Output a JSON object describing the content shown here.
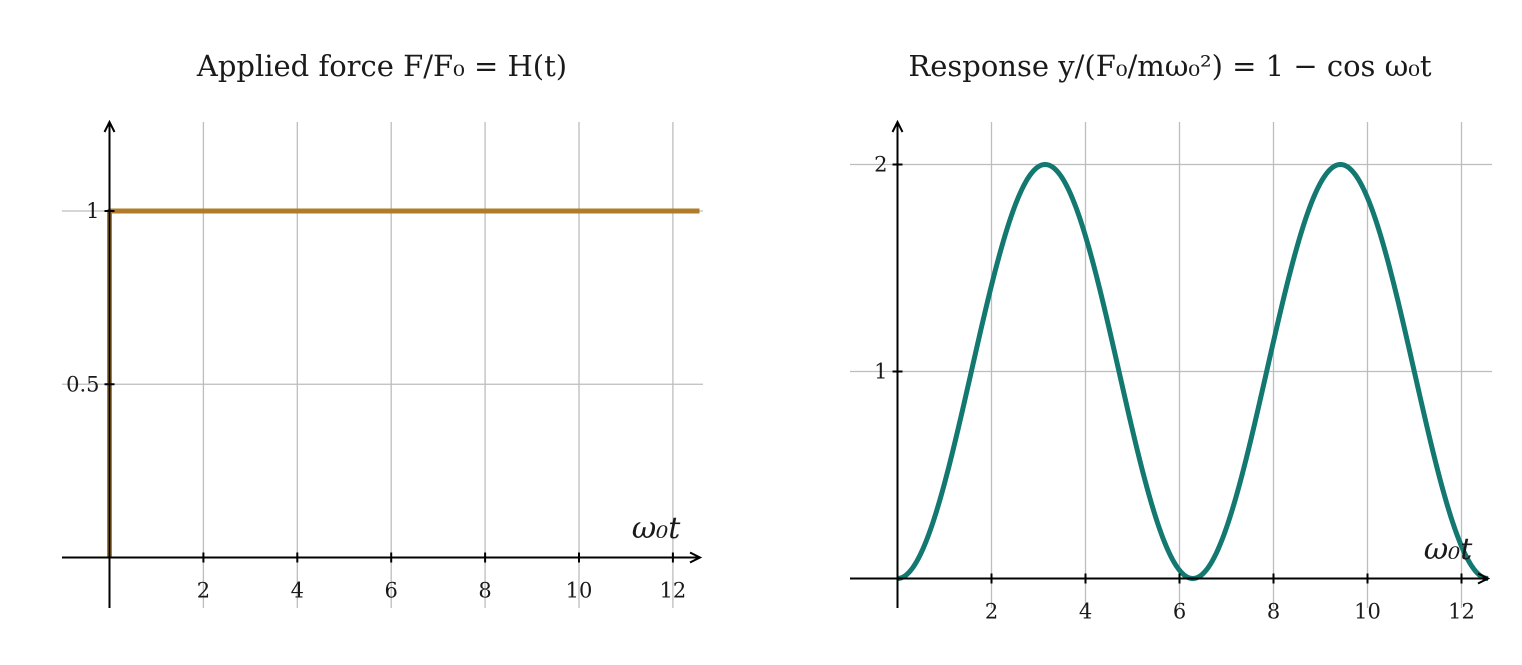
{
  "chart_data": [
    {
      "type": "line",
      "title": "Applied force F/F₀ = H(t)",
      "xlabel": "ω₀t",
      "ylabel": "",
      "xlim": [
        -1,
        12.6
      ],
      "ylim": [
        -0.15,
        1.25
      ],
      "xticks": [
        2,
        4,
        6,
        8,
        10,
        12
      ],
      "xtick_labels": [
        "2",
        "4",
        "6",
        "8",
        "10",
        "12"
      ],
      "yticks": [
        0.5,
        1
      ],
      "ytick_labels": [
        "0.5",
        "1"
      ],
      "grid": true,
      "color": "#b07c28",
      "series": [
        {
          "x": [
            0,
            0,
            12.566
          ],
          "y": [
            0,
            1,
            1
          ]
        }
      ]
    },
    {
      "type": "line",
      "title": "Response y/(F₀/mω₀²) = 1 − cos ω₀t",
      "xlabel": "ω₀t",
      "ylabel": "",
      "xlim": [
        -1,
        12.6
      ],
      "ylim": [
        -0.15,
        2.2
      ],
      "xticks": [
        2,
        4,
        6,
        8,
        10,
        12
      ],
      "xtick_labels": [
        "2",
        "4",
        "6",
        "8",
        "10",
        "12"
      ],
      "yticks": [
        1,
        2
      ],
      "ytick_labels": [
        "1",
        "2"
      ],
      "grid": true,
      "color": "#127870",
      "series": [
        {
          "x": [
            0,
            0.5,
            1,
            1.5,
            2,
            2.5,
            3,
            3.1416,
            3.5,
            4,
            4.5,
            5,
            5.5,
            6,
            6.2832,
            6.5,
            7,
            7.5,
            8,
            8.5,
            9,
            9.4248,
            10,
            10.5,
            11,
            11.5,
            12,
            12.566
          ],
          "y": [
            0,
            0.12,
            0.46,
            0.93,
            1.42,
            1.8,
            1.99,
            2,
            1.94,
            1.65,
            1.21,
            0.72,
            0.29,
            0.04,
            0,
            0.02,
            0.25,
            0.65,
            1.15,
            1.6,
            1.91,
            2,
            1.84,
            1.48,
            1.0,
            0.51,
            0.16,
            0
          ]
        }
      ]
    }
  ]
}
